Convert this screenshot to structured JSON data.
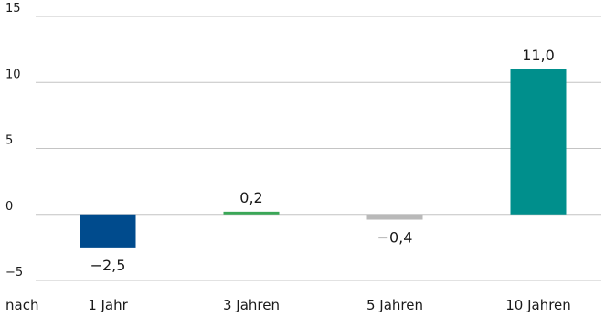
{
  "chart_data": {
    "type": "bar",
    "title": "",
    "xlabel": "",
    "ylabel": "",
    "x_prefix": "nach",
    "categories": [
      "1 Jahr",
      "3 Jahren",
      "5 Jahren",
      "10 Jahren"
    ],
    "values": [
      -2.5,
      0.2,
      -0.4,
      11.0
    ],
    "value_labels": [
      "−2,5",
      "0,2",
      "−0,4",
      "11,0"
    ],
    "colors": [
      "#004b8d",
      "#3aa757",
      "#b9b9b9",
      "#008f8c"
    ],
    "ylim": [
      -5,
      15
    ],
    "yticks": [
      -5,
      0,
      5,
      10,
      15
    ],
    "ytick_labels": [
      "−5",
      "0",
      "5",
      "10",
      "15"
    ],
    "grid": true,
    "legend": false
  }
}
